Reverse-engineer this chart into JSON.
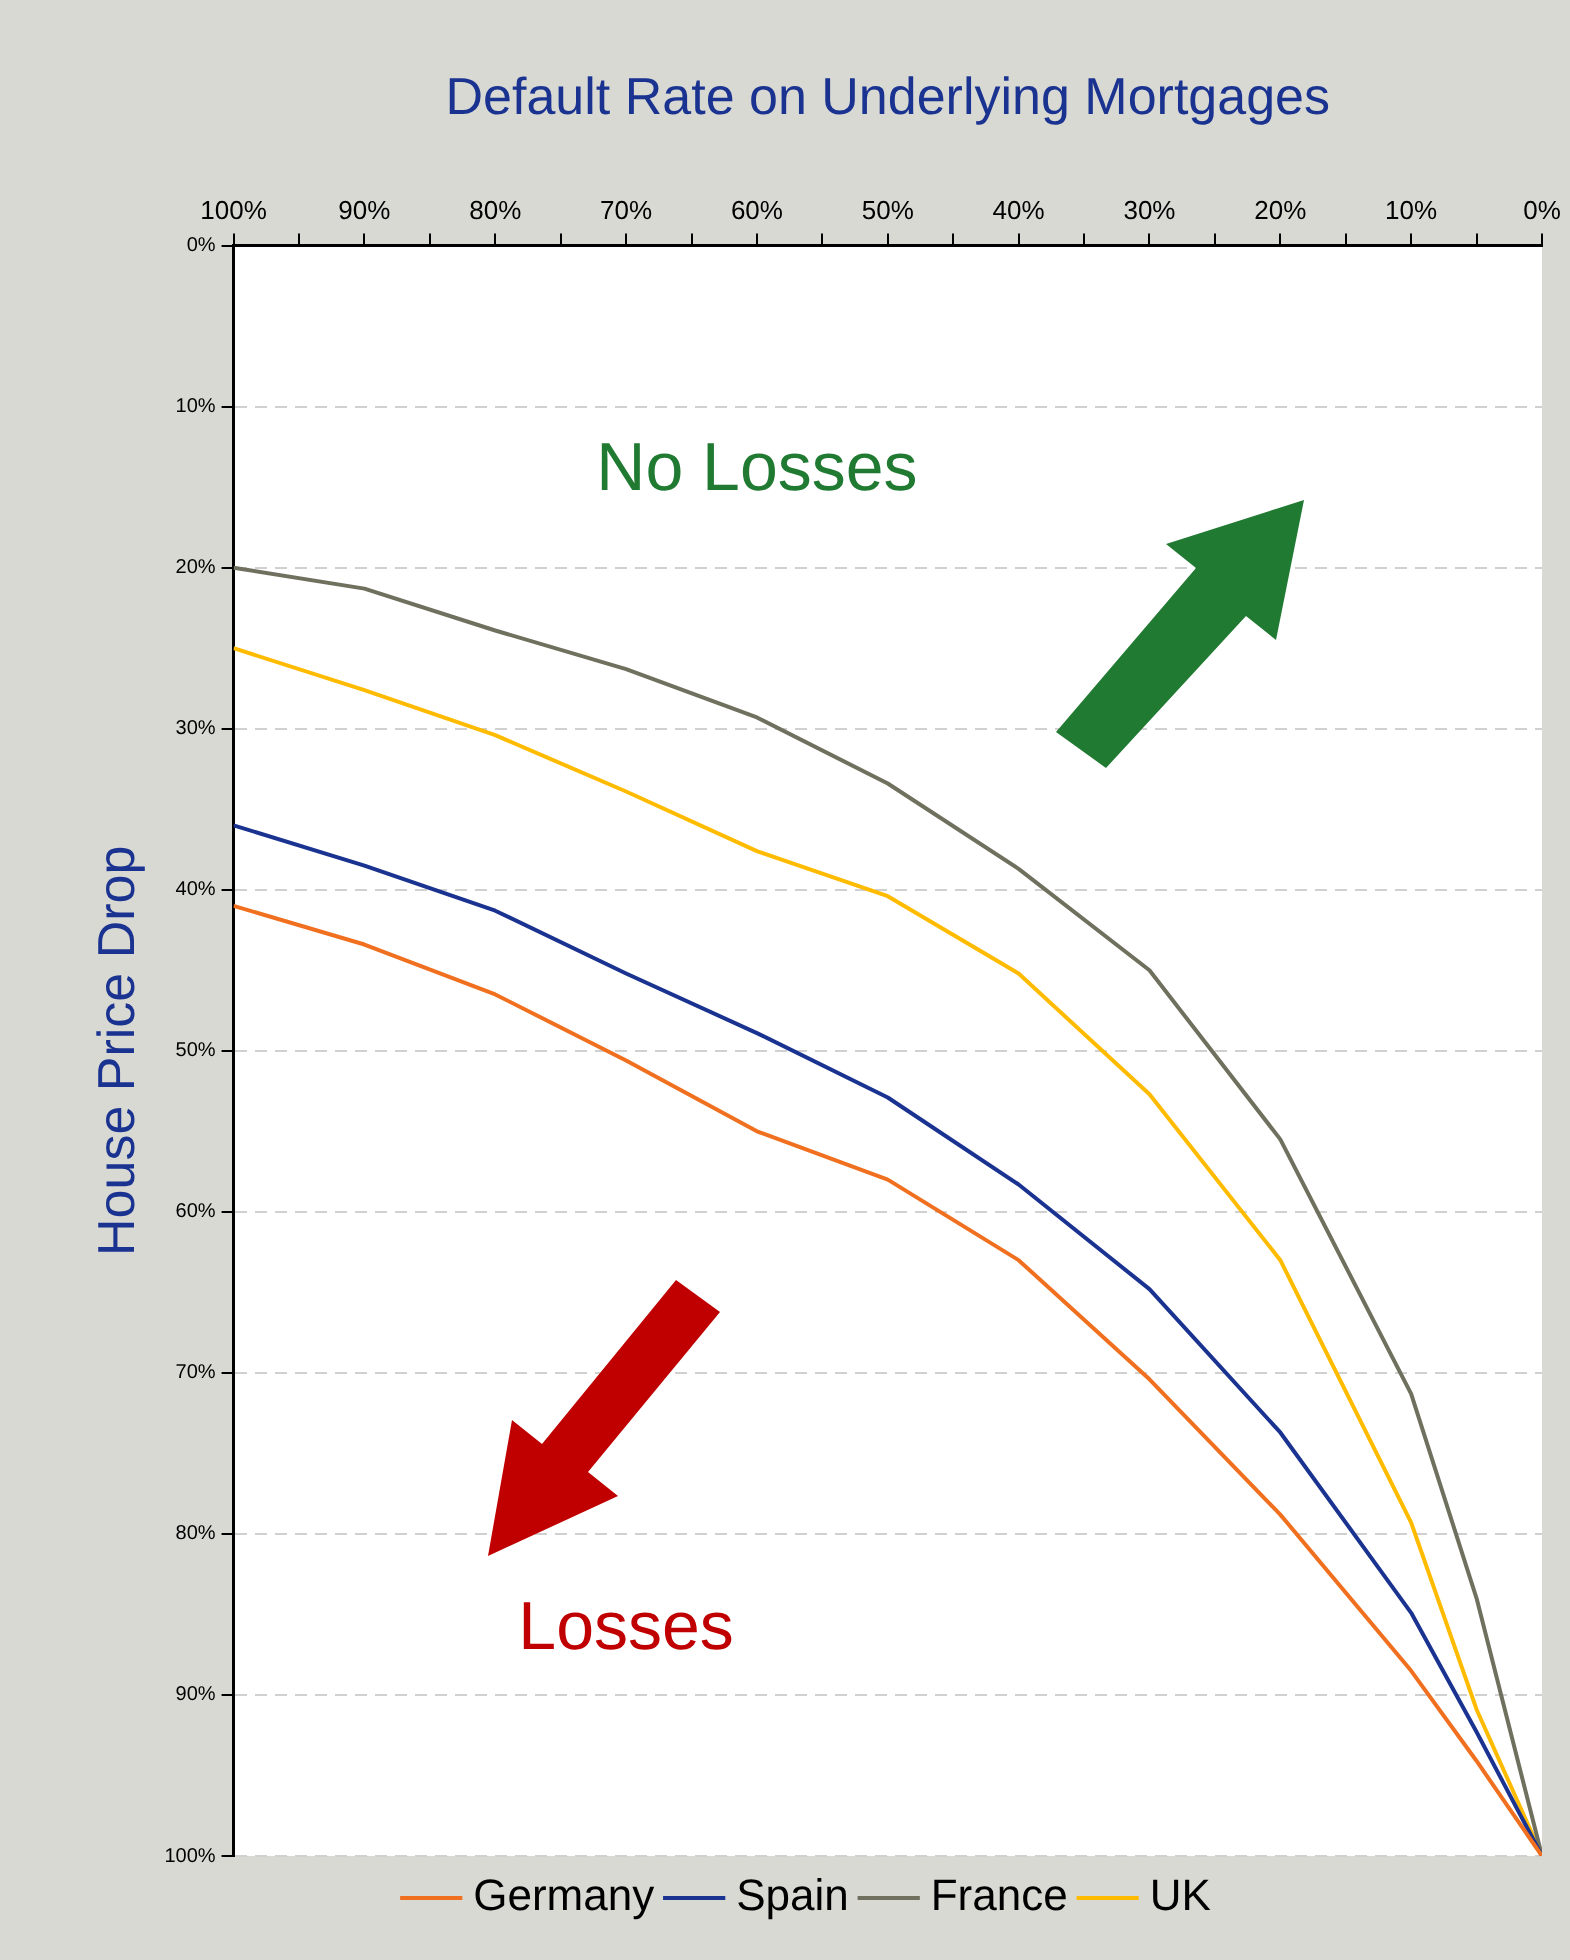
{
  "chart_data": {
    "type": "line",
    "xlabel": "Default Rate on Underlying Mortgages",
    "ylabel": "House Price Drop",
    "x": [
      100,
      90,
      80,
      70,
      60,
      50,
      40,
      30,
      20,
      10,
      5,
      0
    ],
    "series": [
      {
        "name": "Germany",
        "color": "#f07020",
        "values": [
          41,
          43.4,
          46.5,
          50.6,
          55,
          58,
          63,
          70.4,
          78.8,
          88.5,
          94.1,
          100
        ]
      },
      {
        "name": "Spain",
        "color": "#1a3390",
        "values": [
          36,
          38.5,
          41.3,
          45.2,
          48.9,
          52.9,
          58.3,
          64.8,
          73.7,
          84.9,
          92.3,
          100
        ]
      },
      {
        "name": "France",
        "color": "#70705f",
        "values": [
          20,
          21.3,
          23.9,
          26.3,
          29.3,
          33.4,
          38.7,
          45,
          55.5,
          71.3,
          84,
          100
        ]
      },
      {
        "name": "UK",
        "color": "#ffbb00",
        "values": [
          25,
          27.6,
          30.4,
          33.9,
          37.6,
          40.4,
          45.2,
          52.7,
          63,
          79.3,
          90.9,
          100
        ]
      }
    ],
    "xlim": [
      100,
      0
    ],
    "xticks": [
      {
        "value": 100,
        "label": "100%"
      },
      {
        "value": 95,
        "label": null
      },
      {
        "value": 90,
        "label": "90%"
      },
      {
        "value": 85,
        "label": null
      },
      {
        "value": 80,
        "label": "80%"
      },
      {
        "value": 75,
        "label": null
      },
      {
        "value": 70,
        "label": "70%"
      },
      {
        "value": 65,
        "label": null
      },
      {
        "value": 60,
        "label": "60%"
      },
      {
        "value": 55,
        "label": null
      },
      {
        "value": 50,
        "label": "50%"
      },
      {
        "value": 45,
        "label": null
      },
      {
        "value": 40,
        "label": "40%"
      },
      {
        "value": 35,
        "label": null
      },
      {
        "value": 30,
        "label": "30%"
      },
      {
        "value": 25,
        "label": null
      },
      {
        "value": 20,
        "label": "20%"
      },
      {
        "value": 15,
        "label": null
      },
      {
        "value": 10,
        "label": "10%"
      },
      {
        "value": 5,
        "label": null
      },
      {
        "value": 0,
        "label": "0%"
      }
    ],
    "ylim": [
      100,
      0
    ],
    "yticks": [
      {
        "value": 0,
        "label": "0%"
      },
      {
        "value": 10,
        "label": "10%"
      },
      {
        "value": 20,
        "label": "20%"
      },
      {
        "value": 30,
        "label": "30%"
      },
      {
        "value": 40,
        "label": "40%"
      },
      {
        "value": 50,
        "label": "50%"
      },
      {
        "value": 60,
        "label": "60%"
      },
      {
        "value": 70,
        "label": "70%"
      },
      {
        "value": 80,
        "label": "80%"
      },
      {
        "value": 90,
        "label": "90%"
      },
      {
        "value": 100,
        "label": "100%"
      }
    ],
    "grid": "y",
    "legend": "bottom",
    "marker": "none",
    "line_style": "solid",
    "annotations": [
      "No Losses",
      "Losses"
    ]
  }
}
